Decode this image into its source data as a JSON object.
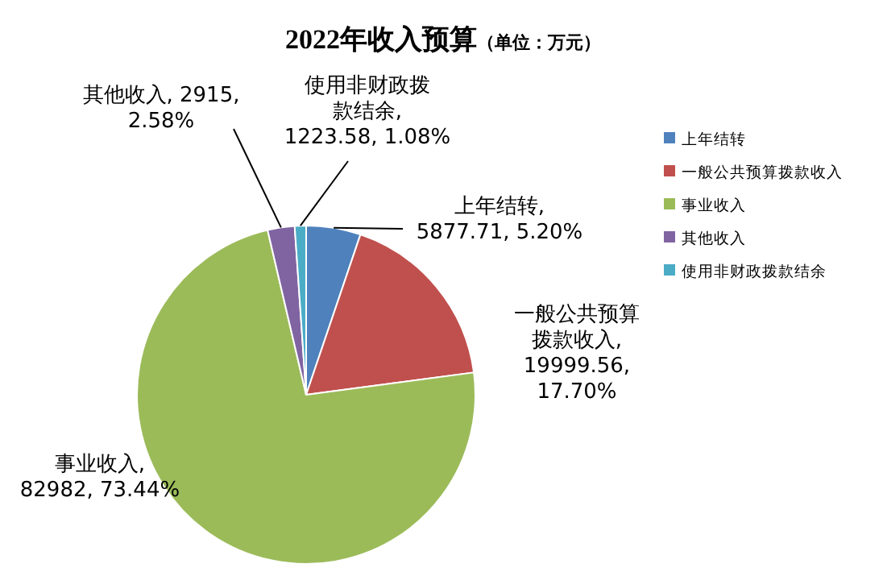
{
  "chart_data": {
    "type": "pie",
    "title": "2022年收入预算",
    "subtitle": "（单位：万元）",
    "categories": [
      "上年结转",
      "一般公共预算拨款收入",
      "事业收入",
      "其他收入",
      "使用非财政拨款结余"
    ],
    "values": [
      5877.71,
      19999.56,
      82982,
      2915,
      1223.58
    ],
    "colors": [
      "#4f81bd",
      "#c0504d",
      "#9bbb59",
      "#8064a2",
      "#4bacc6"
    ],
    "value_labels": [
      "上年结转, 5877.71, 5.20%",
      "一般公共预算拨款收入, 19999.56, 17.70%",
      "事业收入, 82982, 73.44%",
      "其他收入, 2915, 2.58%",
      "使用非财政拨款结余, 1223.58, 1.08%"
    ],
    "legend": "right"
  }
}
